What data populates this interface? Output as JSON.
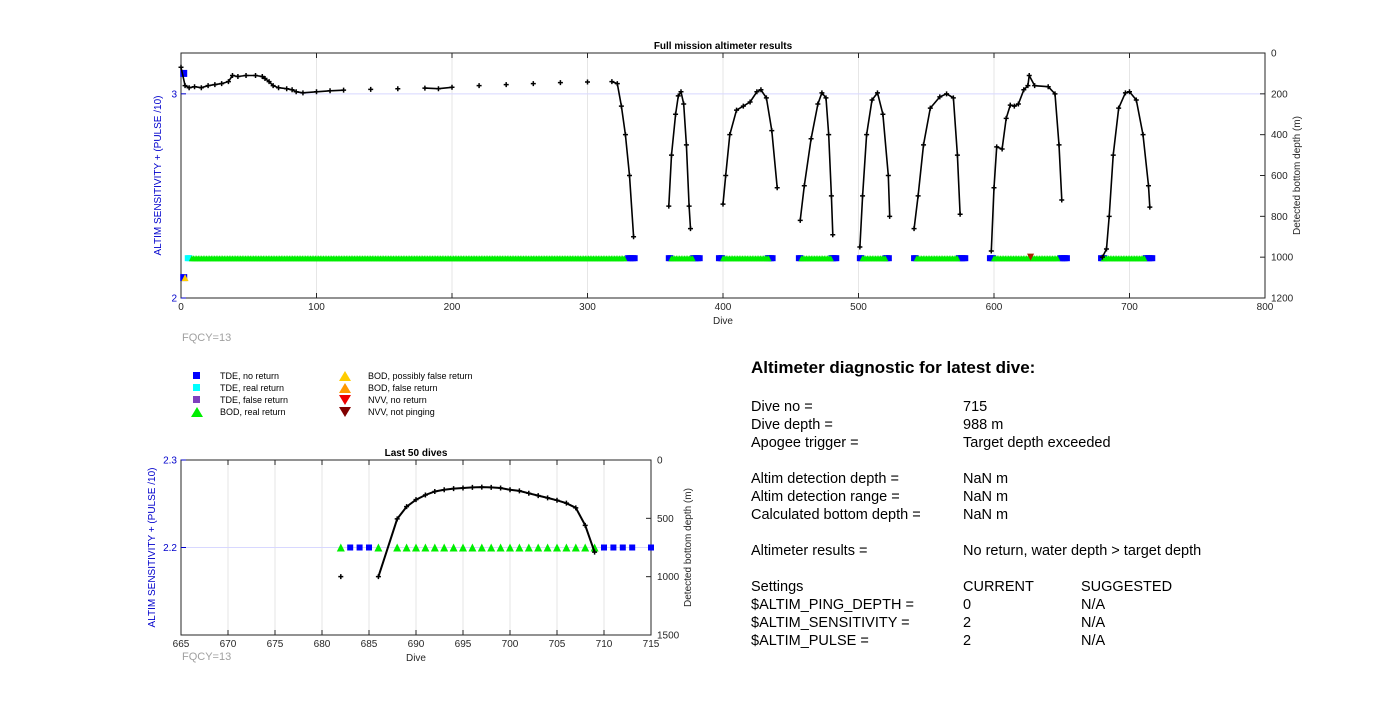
{
  "top_chart_data": {
    "type": "scatter",
    "title": "Full mission altimeter results",
    "xlabel": "Dive",
    "ylabel_left": "ALTIM SENSITIVITY + (PULSE /10)",
    "ylabel_right": "Detected bottom depth (m)",
    "xlim": [
      0,
      800
    ],
    "ylim_left": [
      2,
      3.2
    ],
    "ylim_right": [
      1200,
      0
    ],
    "x_ticks": [
      "0",
      "100",
      "200",
      "300",
      "400",
      "500",
      "600",
      "700",
      "800"
    ],
    "y_left_ticks": [
      "2",
      "3"
    ],
    "y_right_ticks": [
      "0",
      "200",
      "400",
      "600",
      "800",
      "1000",
      "1200"
    ],
    "colors": {
      "left_axis": "#0000cc",
      "depth_line": "#000000"
    },
    "depth_profile": [
      [
        0,
        70
      ],
      [
        3,
        160
      ],
      [
        6,
        170
      ],
      [
        10,
        165
      ],
      [
        15,
        170
      ],
      [
        20,
        160
      ],
      [
        25,
        155
      ],
      [
        30,
        150
      ],
      [
        35,
        140
      ],
      [
        38,
        110
      ],
      [
        42,
        115
      ],
      [
        48,
        110
      ],
      [
        55,
        110
      ],
      [
        60,
        115
      ],
      [
        62,
        125
      ],
      [
        65,
        140
      ],
      [
        68,
        160
      ],
      [
        72,
        170
      ],
      [
        78,
        175
      ],
      [
        82,
        180
      ],
      [
        85,
        190
      ],
      [
        90,
        195
      ],
      [
        100,
        190
      ],
      [
        110,
        185
      ],
      [
        120,
        182
      ],
      [
        140,
        178
      ],
      [
        160,
        175
      ],
      [
        180,
        172
      ],
      [
        190,
        175
      ],
      [
        200,
        168
      ],
      [
        220,
        160
      ],
      [
        240,
        155
      ],
      [
        260,
        150
      ],
      [
        280,
        145
      ],
      [
        300,
        142
      ],
      [
        318,
        140
      ],
      [
        322,
        150
      ],
      [
        325,
        260
      ],
      [
        328,
        400
      ],
      [
        331,
        600
      ],
      [
        334,
        900
      ],
      [
        360,
        750
      ],
      [
        362,
        500
      ],
      [
        365,
        300
      ],
      [
        367,
        210
      ],
      [
        369,
        190
      ],
      [
        371,
        250
      ],
      [
        373,
        450
      ],
      [
        375,
        750
      ],
      [
        376,
        860
      ],
      [
        400,
        740
      ],
      [
        402,
        600
      ],
      [
        405,
        400
      ],
      [
        410,
        280
      ],
      [
        415,
        260
      ],
      [
        420,
        240
      ],
      [
        425,
        190
      ],
      [
        428,
        180
      ],
      [
        432,
        220
      ],
      [
        436,
        380
      ],
      [
        440,
        660
      ],
      [
        457,
        820
      ],
      [
        460,
        650
      ],
      [
        465,
        420
      ],
      [
        470,
        250
      ],
      [
        473,
        195
      ],
      [
        476,
        220
      ],
      [
        478,
        400
      ],
      [
        480,
        700
      ],
      [
        481,
        890
      ],
      [
        501,
        950
      ],
      [
        503,
        700
      ],
      [
        506,
        400
      ],
      [
        510,
        230
      ],
      [
        514,
        195
      ],
      [
        518,
        300
      ],
      [
        522,
        600
      ],
      [
        523,
        800
      ],
      [
        541,
        860
      ],
      [
        544,
        700
      ],
      [
        548,
        450
      ],
      [
        553,
        270
      ],
      [
        560,
        215
      ],
      [
        565,
        200
      ],
      [
        570,
        220
      ],
      [
        573,
        500
      ],
      [
        575,
        790
      ],
      [
        598,
        970
      ],
      [
        600,
        660
      ],
      [
        602,
        460
      ],
      [
        606,
        470
      ],
      [
        609,
        320
      ],
      [
        612,
        255
      ],
      [
        615,
        260
      ],
      [
        618,
        250
      ],
      [
        622,
        180
      ],
      [
        625,
        160
      ],
      [
        626,
        110
      ],
      [
        630,
        160
      ],
      [
        640,
        165
      ],
      [
        645,
        200
      ],
      [
        648,
        450
      ],
      [
        650,
        720
      ],
      [
        680,
        1000
      ],
      [
        683,
        960
      ],
      [
        685,
        800
      ],
      [
        688,
        500
      ],
      [
        692,
        270
      ],
      [
        697,
        195
      ],
      [
        700,
        190
      ],
      [
        705,
        230
      ],
      [
        710,
        400
      ],
      [
        714,
        650
      ],
      [
        715,
        755
      ]
    ],
    "markers": [
      {
        "legend": "TDE, no return",
        "color": "#0000ff",
        "shape": "square",
        "y": 2.195,
        "x_ranges": [
          [
            330,
            335
          ],
          [
            360,
            362
          ],
          [
            378,
            383
          ],
          [
            397,
            400
          ],
          [
            433,
            437
          ],
          [
            456,
            458
          ],
          [
            480,
            484
          ],
          [
            501,
            503
          ],
          [
            520,
            523
          ],
          [
            541,
            543
          ],
          [
            574,
            580
          ],
          [
            597,
            600
          ],
          [
            649,
            655
          ],
          [
            679,
            682
          ],
          [
            712,
            718
          ]
        ]
      },
      {
        "legend": "TDE, real return",
        "color": "#00ffff",
        "shape": "square",
        "y": 2.195,
        "x_ranges": [
          [
            5,
            7
          ]
        ]
      },
      {
        "legend": "BOD, real return",
        "color": "#00ee00",
        "shape": "triangle",
        "y": 2.195,
        "x_ranges": [
          [
            8,
            328
          ],
          [
            362,
            378
          ],
          [
            400,
            434
          ],
          [
            458,
            480
          ],
          [
            503,
            520
          ],
          [
            543,
            574
          ],
          [
            600,
            648
          ],
          [
            681,
            712
          ]
        ]
      }
    ],
    "extra_points": [
      {
        "x": 2,
        "y": 3.1,
        "color": "#0000ff",
        "shape": "square"
      },
      {
        "x": 2,
        "y": 2.1,
        "color": "#0000ff",
        "shape": "square"
      },
      {
        "x": 3,
        "y": 2.1,
        "color": "#ffcc00",
        "shape": "triangle"
      },
      {
        "x": 627,
        "y": 2.2,
        "color": "#aa2200",
        "shape": "triangle-down"
      }
    ],
    "footer": "FQCY=13"
  },
  "bottom_chart_data": {
    "type": "scatter",
    "title": "Last 50 dives",
    "xlabel": "Dive",
    "ylabel_left": "ALTIM SENSITIVITY + (PULSE /10)",
    "ylabel_right": "Detected bottom depth (m)",
    "xlim": [
      665,
      715
    ],
    "ylim_left": [
      2.1,
      2.3
    ],
    "ylim_right": [
      1500,
      0
    ],
    "x_ticks": [
      "665",
      "670",
      "675",
      "680",
      "685",
      "690",
      "695",
      "700",
      "705",
      "710",
      "715"
    ],
    "y_left_ticks": [
      "2.2",
      "2.3"
    ],
    "y_right_ticks": [
      "0",
      "500",
      "1000",
      "1500"
    ],
    "depth_profile": [
      [
        686,
        1000
      ],
      [
        688,
        505
      ],
      [
        689,
        400
      ],
      [
        690,
        340
      ],
      [
        691,
        300
      ],
      [
        692,
        270
      ],
      [
        693,
        255
      ],
      [
        694,
        245
      ],
      [
        695,
        240
      ],
      [
        696,
        235
      ],
      [
        697,
        232
      ],
      [
        698,
        235
      ],
      [
        699,
        240
      ],
      [
        700,
        255
      ],
      [
        701,
        265
      ],
      [
        702,
        285
      ],
      [
        703,
        305
      ],
      [
        704,
        325
      ],
      [
        705,
        345
      ],
      [
        706,
        370
      ],
      [
        707,
        410
      ],
      [
        708,
        560
      ],
      [
        709,
        790
      ]
    ],
    "isolated_depth_points": [
      [
        682,
        1000
      ]
    ],
    "blue_squares_x": [
      683,
      684,
      685,
      710,
      711,
      712,
      713,
      715
    ],
    "green_triangles_x": [
      682,
      686,
      688,
      689,
      690,
      691,
      692,
      693,
      694,
      695,
      696,
      697,
      698,
      699,
      700,
      701,
      702,
      703,
      704,
      705,
      706,
      707,
      708,
      709
    ],
    "marker_y": 2.2,
    "footer": "FQCY=13"
  },
  "legend": [
    {
      "label": "TDE, no return",
      "color": "#0000ff",
      "shape": "square"
    },
    {
      "label": "TDE, real return",
      "color": "#00ffff",
      "shape": "square"
    },
    {
      "label": "TDE, false return",
      "color": "#7f3fbf",
      "shape": "square"
    },
    {
      "label": "BOD, real return",
      "color": "#00ee00",
      "shape": "triangle"
    },
    {
      "label": "BOD, possibly false return",
      "color": "#ffcc00",
      "shape": "triangle"
    },
    {
      "label": "BOD, false return",
      "color": "#ff9900",
      "shape": "triangle"
    },
    {
      "label": "NVV, no return",
      "color": "#ee0000",
      "shape": "triangle-down"
    },
    {
      "label": "NVV, not pinging",
      "color": "#800000",
      "shape": "triangle-down"
    }
  ],
  "diagnostic": {
    "title": "Altimeter diagnostic for latest dive:",
    "dive_no_label": "Dive no =",
    "dive_no": "715",
    "dive_depth_label": "Dive depth =",
    "dive_depth": "988 m",
    "apogee_label": "Apogee trigger =",
    "apogee": "Target depth exceeded",
    "det_depth_label": "Altim detection depth =",
    "det_depth": "NaN m",
    "det_range_label": "Altim detection range =",
    "det_range": "NaN m",
    "calc_depth_label": "Calculated bottom depth =",
    "calc_depth": "NaN m",
    "results_label": "Altimeter results =",
    "results": "No return, water depth > target depth",
    "settings_label": "Settings",
    "current_label": "CURRENT",
    "suggested_label": "SUGGESTED",
    "ping_label": "$ALTIM_PING_DEPTH =",
    "ping_cur": "0",
    "ping_sug": "N/A",
    "sens_label": "$ALTIM_SENSITIVITY =",
    "sens_cur": "2",
    "sens_sug": "N/A",
    "pulse_label": "$ALTIM_PULSE =",
    "pulse_cur": "2",
    "pulse_sug": "N/A"
  }
}
